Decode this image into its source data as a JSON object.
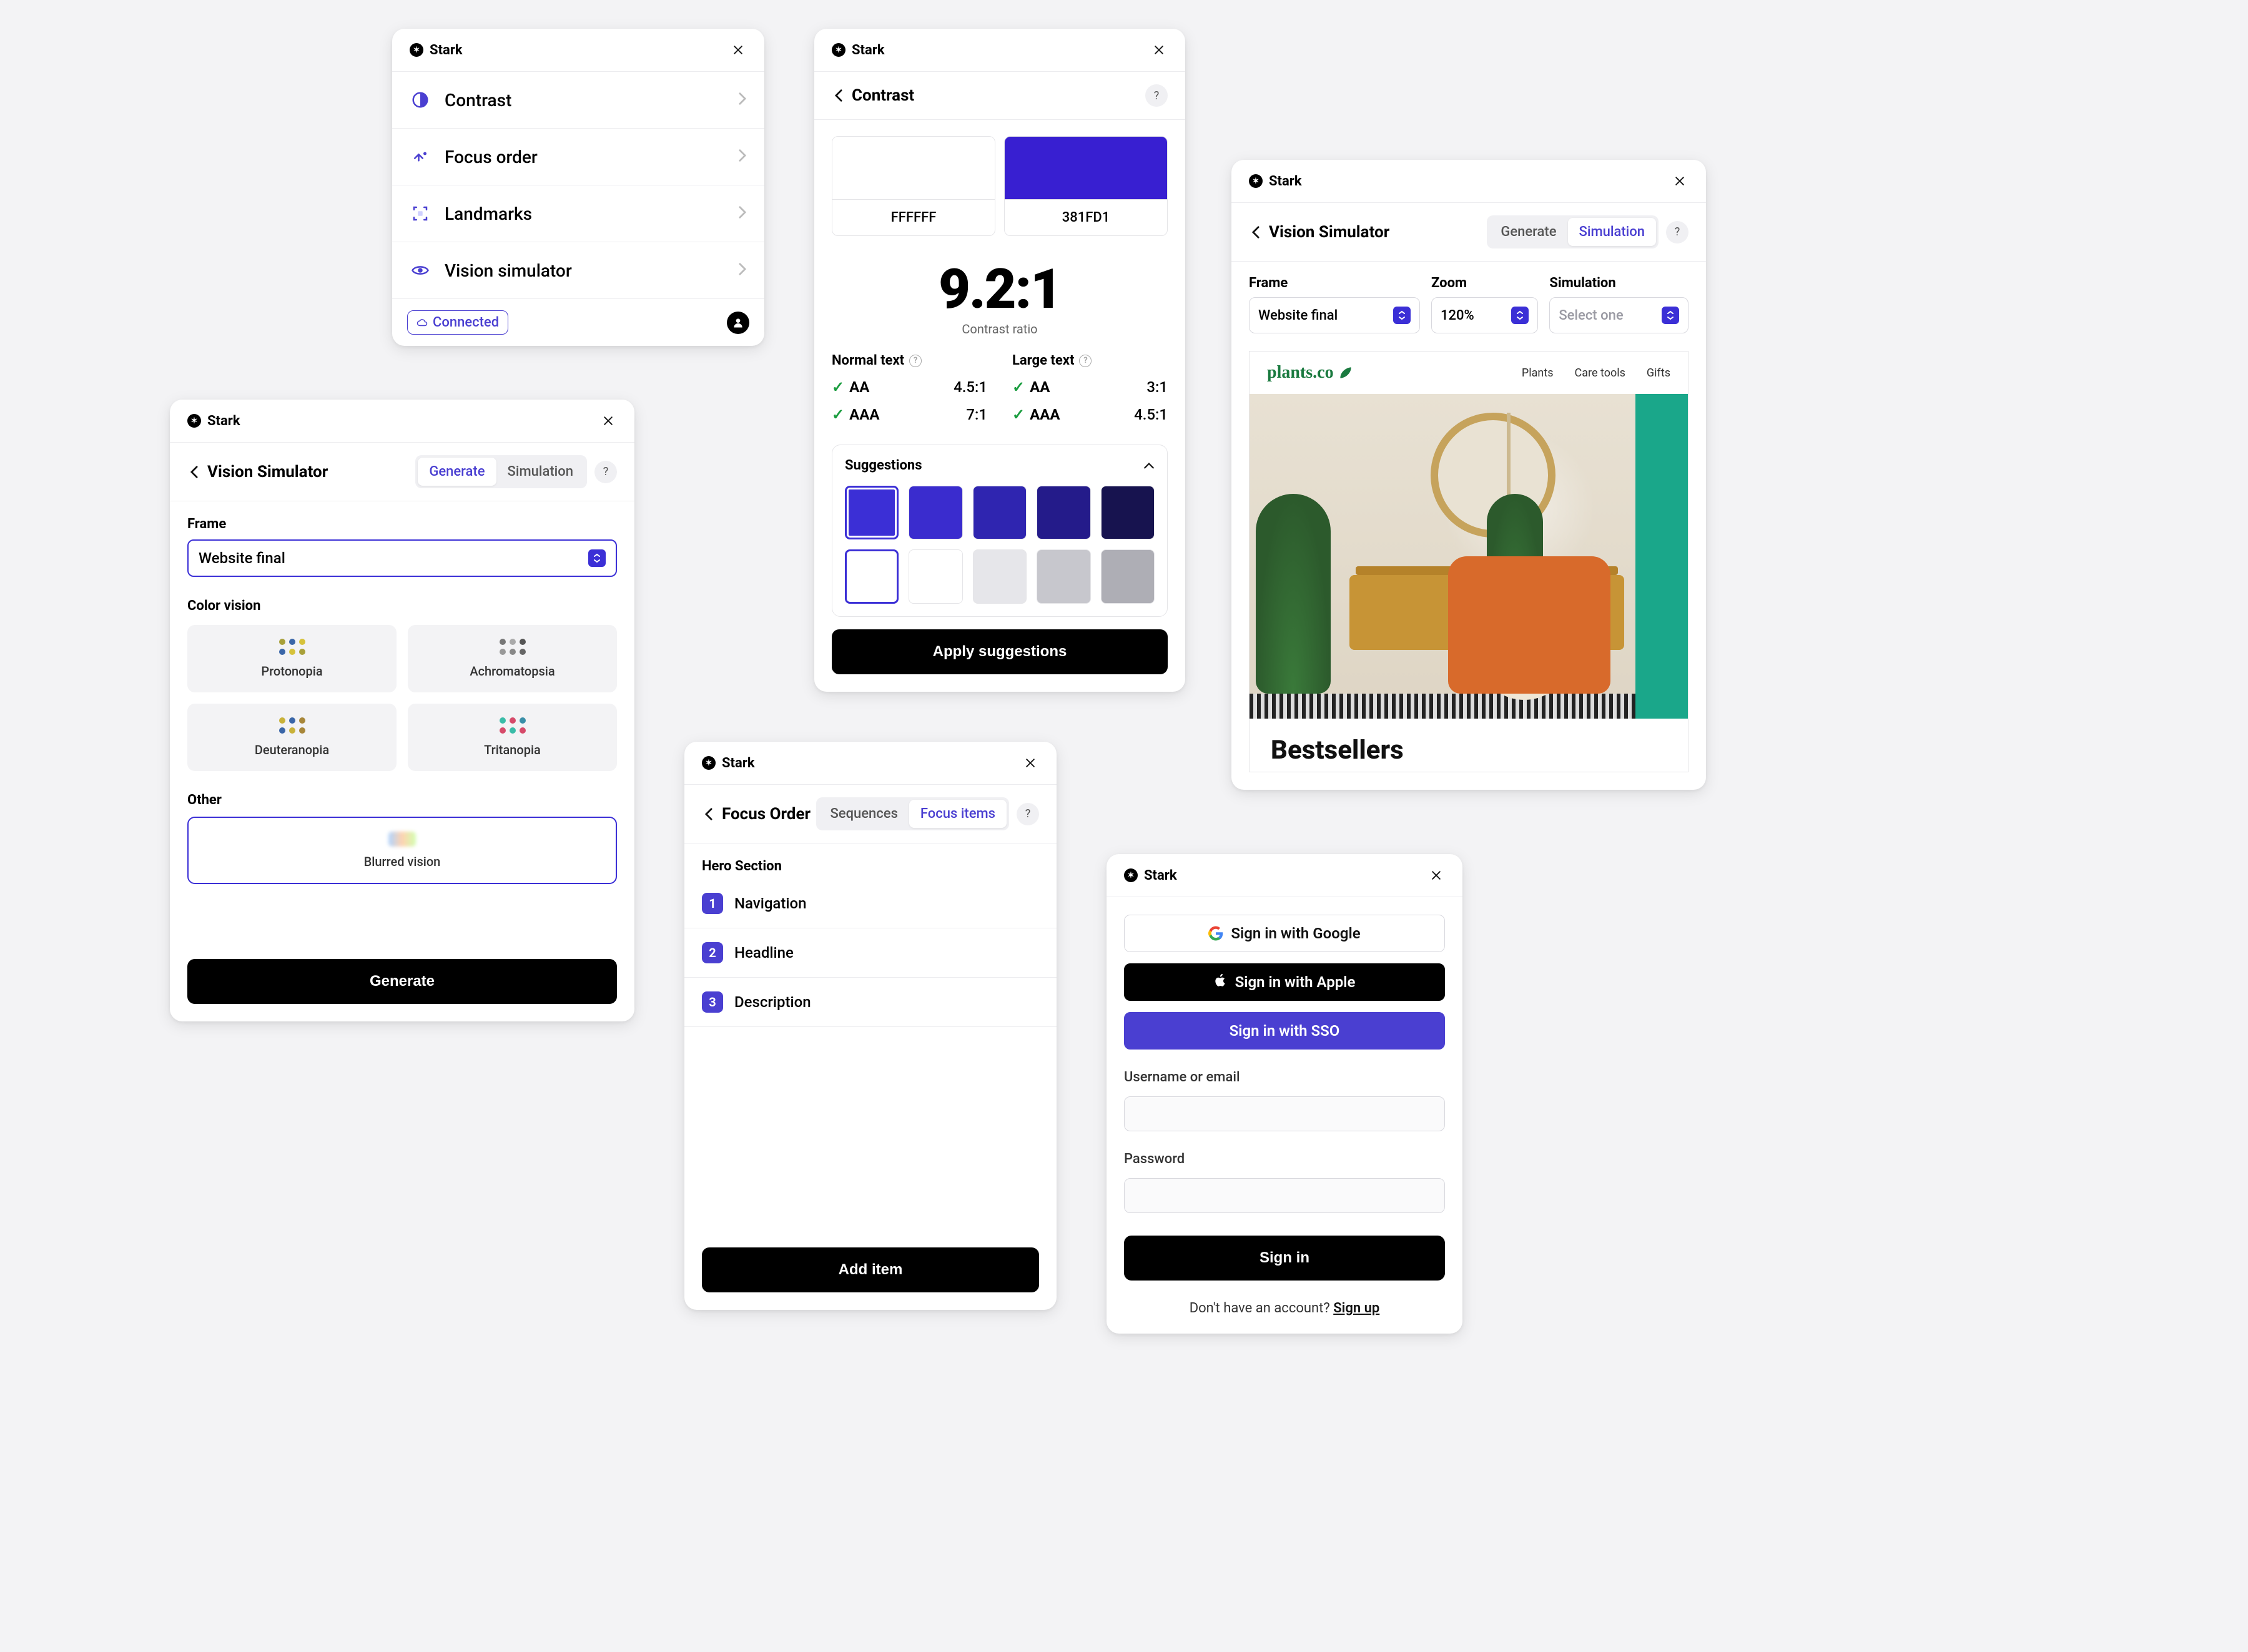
{
  "app_name": "Stark",
  "colors": {
    "accent": "#4a3fd1",
    "panel_bg": "#ffffff",
    "border": "#ececef",
    "success": "#1a9d3f"
  },
  "panel_main_menu": {
    "items": [
      {
        "label": "Contrast",
        "icon": "contrast-circle-icon"
      },
      {
        "label": "Focus order",
        "icon": "focus-order-icon"
      },
      {
        "label": "Landmarks",
        "icon": "landmarks-icon"
      },
      {
        "label": "Vision simulator",
        "icon": "vision-sim-icon"
      }
    ],
    "connected_badge": "Connected"
  },
  "panel_contrast": {
    "title": "Contrast",
    "foreground": {
      "hex": "FFFFFF",
      "color": "#ffffff"
    },
    "background": {
      "hex": "381FD1",
      "color": "#381FD1"
    },
    "ratio": "9.2:1",
    "ratio_label": "Contrast ratio",
    "normal_text_title": "Normal text",
    "large_text_title": "Large text",
    "results": {
      "normal": [
        {
          "level": "AA",
          "pass": true,
          "ratio": "4.5:1"
        },
        {
          "level": "AAA",
          "pass": true,
          "ratio": "7:1"
        }
      ],
      "large": [
        {
          "level": "AA",
          "pass": true,
          "ratio": "3:1"
        },
        {
          "level": "AAA",
          "pass": true,
          "ratio": "4.5:1"
        }
      ]
    },
    "suggestions_title": "Suggestions",
    "suggestion_colors_row1": [
      "#3b2fd6",
      "#3a2cce",
      "#2f25b0",
      "#241b8a",
      "#17134f"
    ],
    "suggestion_colors_row2": [
      "#ffffff",
      "#ffffff",
      "#e6e6ea",
      "#c7c7cd",
      "#aeaeb5"
    ],
    "selected_row1_index": 0,
    "selected_row2_index": 0,
    "apply_label": "Apply suggestions"
  },
  "panel_vision_generate": {
    "title": "Vision Simulator",
    "tabs": {
      "generate": "Generate",
      "simulation": "Simulation",
      "active": "generate"
    },
    "frame_label": "Frame",
    "frame_value": "Website final",
    "section_color_vision": "Color vision",
    "color_vision_options": [
      {
        "name": "Protonopia",
        "dots": [
          "#a8a03a",
          "#3a66a8",
          "#d6c23a",
          "#3a66a8",
          "#d6c23a",
          "#a8a03a"
        ]
      },
      {
        "name": "Achromatopsia",
        "dots": [
          "#777777",
          "#aaaaaa",
          "#555555",
          "#999999",
          "#888888",
          "#666666"
        ]
      },
      {
        "name": "Deuteranopia",
        "dots": [
          "#c9b23a",
          "#3a66a8",
          "#a8873a",
          "#3a66a8",
          "#c9b23a",
          "#a8873a"
        ]
      },
      {
        "name": "Tritanopia",
        "dots": [
          "#3abca8",
          "#d64a6a",
          "#3a8fa8",
          "#d64a6a",
          "#3abca8",
          "#d64a6a"
        ]
      }
    ],
    "section_other": "Other",
    "blurred_label": "Blurred vision",
    "generate_button": "Generate"
  },
  "panel_vision_result": {
    "title": "Vision Simulator",
    "tabs": {
      "generate": "Generate",
      "simulation": "Simulation",
      "active": "simulation"
    },
    "frame_label": "Frame",
    "frame_value": "Website final",
    "zoom_label": "Zoom",
    "zoom_value": "120%",
    "simulation_label": "Simulation",
    "simulation_placeholder": "Select one",
    "preview": {
      "logo": "plants.co",
      "nav": [
        "Plants",
        "Care tools",
        "Gifts"
      ],
      "bestsellers": "Bestsellers"
    }
  },
  "panel_focus_order": {
    "title": "Focus Order",
    "tabs": {
      "sequences": "Sequences",
      "focus_items": "Focus items",
      "active": "focus_items"
    },
    "section_title": "Hero Section",
    "items": [
      {
        "n": "1",
        "label": "Navigation"
      },
      {
        "n": "2",
        "label": "Headline"
      },
      {
        "n": "3",
        "label": "Description"
      }
    ],
    "add_item_label": "Add item"
  },
  "panel_signin": {
    "google": "Sign in with Google",
    "apple": "Sign in with Apple",
    "sso": "Sign in with SSO",
    "username_label": "Username or email",
    "password_label": "Password",
    "signin_button": "Sign in",
    "helper_prefix": "Don't have an account? ",
    "helper_link": "Sign up"
  }
}
